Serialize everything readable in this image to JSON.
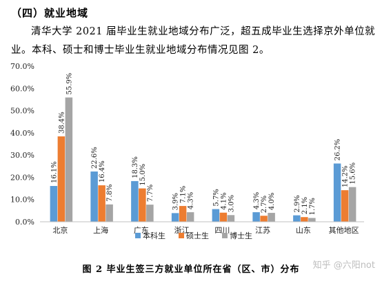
{
  "heading": "（四）就业地域",
  "paragraph": "清华大学 2021 届毕业生就业地域分布广泛，超五成毕业生选择京外单位就业。本科、硕士和博士毕业生就业地域分布情况见图 2。",
  "caption": "图 2 毕业生签三方就业单位所在省（区、市）分布",
  "watermark": "知乎 @六阳not",
  "chart_data": {
    "type": "bar",
    "categories": [
      "北京",
      "上海",
      "广东",
      "浙江",
      "四川",
      "江苏",
      "山东",
      "其他地区"
    ],
    "series": [
      {
        "name": "本科生",
        "color": "#5b9bd5",
        "values": [
          16.1,
          22.6,
          18.3,
          3.9,
          5.7,
          4.3,
          2.9,
          26.2
        ]
      },
      {
        "name": "硕士生",
        "color": "#ed7d31",
        "values": [
          38.4,
          16.4,
          15.0,
          7.1,
          4.1,
          2.7,
          2.1,
          14.2
        ]
      },
      {
        "name": "博士生",
        "color": "#a5a5a5",
        "values": [
          55.9,
          7.8,
          7.7,
          4.3,
          3.0,
          4.0,
          1.7,
          15.6
        ]
      }
    ],
    "ylim": [
      0,
      70
    ],
    "yticks": [
      "0.0%",
      "10.0%",
      "20.0%",
      "30.0%",
      "40.0%",
      "50.0%",
      "60.0%",
      "70.0%"
    ],
    "legend_position": "bottom",
    "grid": false
  }
}
